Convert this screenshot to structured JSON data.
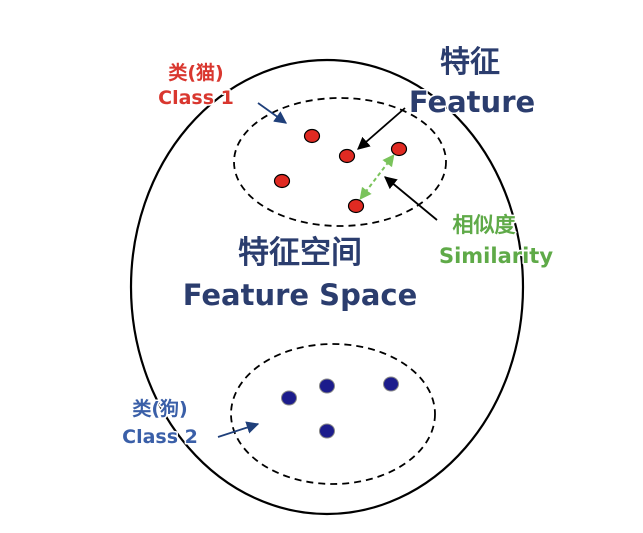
{
  "colors": {
    "background": "#ffffff",
    "outline": "#000000",
    "class1_label": "#d9372f",
    "class1_points": "#e02a22",
    "class2_label": "#3a5fa8",
    "class2_points": "#1c1c8c",
    "feature_label": "#2b3d6e",
    "feature_space_label": "#2b3d6e",
    "similarity_label": "#5faa48",
    "similarity_arrow": "#7ac35b",
    "pointer_arrow": "#1f3f7a"
  },
  "labels": {
    "feature_zh": "特征",
    "feature_en": "Feature",
    "class1_zh": "类(猫)",
    "class1_en": "Class 1",
    "similarity_zh": "相似度",
    "similarity_en": "Similarity",
    "feature_space_zh": "特征空间",
    "feature_space_en": "Feature Space",
    "class2_zh": "类(狗)",
    "class2_en": "Class 2"
  },
  "class1_point_count": 5,
  "class2_point_count": 4
}
